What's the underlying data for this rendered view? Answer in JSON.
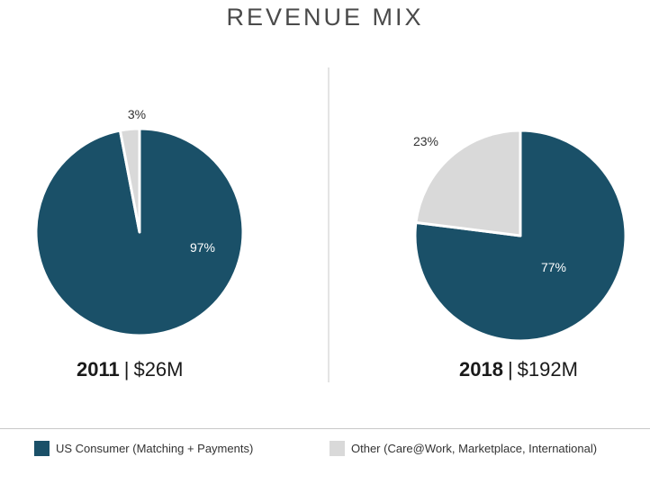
{
  "title": "REVENUE MIX",
  "colors": {
    "us_consumer": "#1a5068",
    "other": "#d9d9d9",
    "divider": "#c8c8c8"
  },
  "chart_data": [
    {
      "type": "pie",
      "year": "2011",
      "amount": "$26M",
      "slices": [
        {
          "name": "US Consumer (Matching + Payments)",
          "value": 97,
          "label": "97%"
        },
        {
          "name": "Other (Care@Work, Marketplace, International)",
          "value": 3,
          "label": "3%"
        }
      ]
    },
    {
      "type": "pie",
      "year": "2018",
      "amount": "$192M",
      "slices": [
        {
          "name": "US Consumer (Matching + Payments)",
          "value": 77,
          "label": "77%"
        },
        {
          "name": "Other (Care@Work, Marketplace, International)",
          "value": 23,
          "label": "23%"
        }
      ]
    }
  ],
  "legend": [
    {
      "label": "US Consumer (Matching + Payments)"
    },
    {
      "label": "Other (Care@Work, Marketplace, International)"
    }
  ],
  "separator": "|"
}
